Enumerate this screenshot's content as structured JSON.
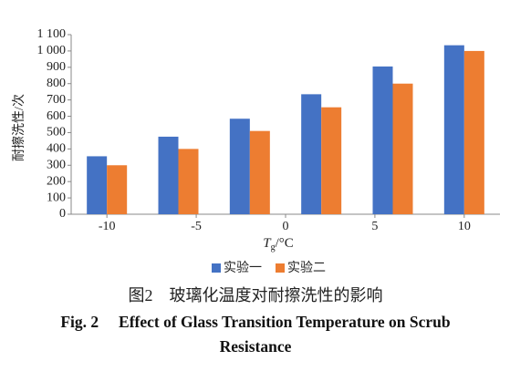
{
  "chart_data": {
    "type": "bar",
    "ylabel": "耐擦洗性/次",
    "xlabel": {
      "symbol": "T",
      "subscript": "g",
      "unit": "/°C"
    },
    "x": [
      -10,
      -6,
      -2,
      2,
      6,
      10
    ],
    "xlim": [
      -12,
      12
    ],
    "xticks": [
      -10,
      -5,
      0,
      5,
      10
    ],
    "ylim": [
      0,
      1100
    ],
    "yticks": [
      0,
      100,
      200,
      300,
      400,
      500,
      600,
      700,
      800,
      900,
      {
        "value": 1000,
        "label": "1 000"
      },
      {
        "value": 1100,
        "label": "1 100"
      }
    ],
    "grid": false,
    "legend": "bottom",
    "series": [
      {
        "name": "实验一",
        "color": "#4472c4",
        "values": [
          355,
          475,
          585,
          735,
          905,
          1035
        ]
      },
      {
        "name": "实验二",
        "color": "#ed7d31",
        "values": [
          300,
          400,
          510,
          655,
          800,
          1000
        ]
      }
    ],
    "caption_cn": "图2　玻璃化温度对耐擦洗性的影响",
    "caption_en": "Fig. 2　 Effect of Glass Transition Temperature on Scrub Resistance"
  }
}
